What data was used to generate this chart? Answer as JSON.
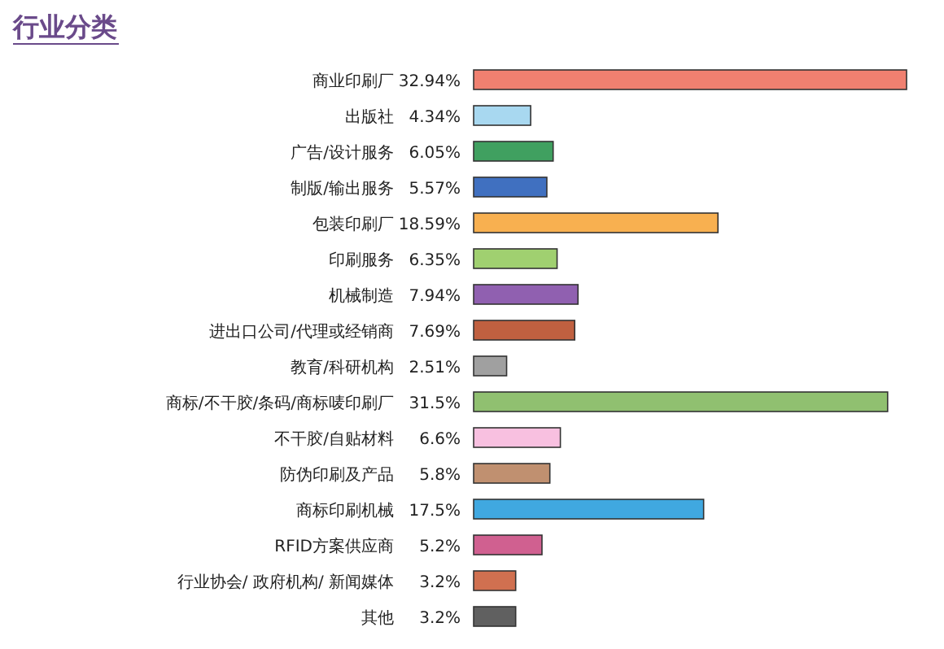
{
  "chart_data": {
    "type": "bar",
    "orientation": "horizontal",
    "title": "行业分类",
    "categories": [
      "商业印刷厂",
      "出版社",
      "广告/设计服务",
      "制版/输出服务",
      "包装印刷厂",
      "印刷服务",
      "机械制造",
      "进出口公司/代理或经销商",
      "教育/科研机构",
      "商标/不干胶/条码/商标唛印刷厂",
      "不干胶/自贴材料",
      "防伪印刷及产品",
      "商标印刷机械",
      "RFID方案供应商",
      "行业协会/ 政府机构/ 新闻媒体",
      "其他"
    ],
    "values": [
      32.94,
      4.34,
      6.05,
      5.57,
      18.59,
      6.35,
      7.94,
      7.69,
      2.51,
      31.5,
      6.6,
      5.8,
      17.5,
      5.2,
      3.2,
      3.2
    ],
    "value_labels": [
      "32.94%",
      "4.34%",
      "6.05%",
      "5.57%",
      "18.59%",
      "6.35%",
      "7.94%",
      "7.69%",
      "2.51%",
      "31.5%",
      "6.6%",
      "5.8%",
      "17.5%",
      "5.2%",
      "3.2%",
      "3.2%"
    ],
    "colors": [
      "#f08070",
      "#a8d8f0",
      "#40a060",
      "#4070c0",
      "#f8b050",
      "#a0d070",
      "#9060b0",
      "#c06040",
      "#a0a0a0",
      "#90c070",
      "#f8c0e0",
      "#c09070",
      "#40a8e0",
      "#d06090",
      "#d07050",
      "#606060"
    ]
  }
}
